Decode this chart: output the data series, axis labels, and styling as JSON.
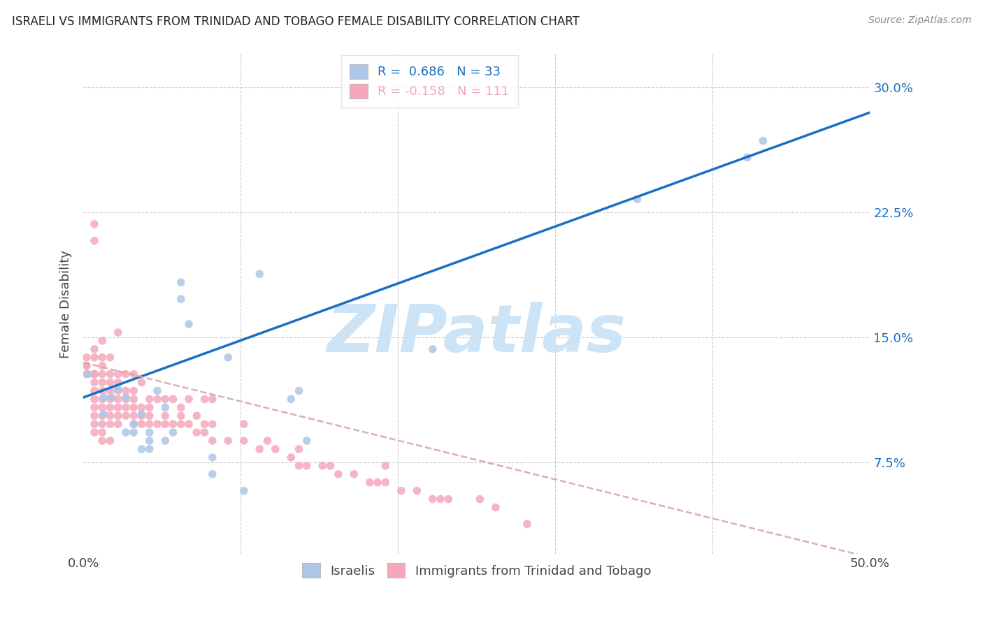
{
  "title": "ISRAELI VS IMMIGRANTS FROM TRINIDAD AND TOBAGO FEMALE DISABILITY CORRELATION CHART",
  "source": "Source: ZipAtlas.com",
  "ylabel": "Female Disability",
  "ytick_labels": [
    "7.5%",
    "15.0%",
    "22.5%",
    "30.0%"
  ],
  "xlim": [
    0.0,
    0.5
  ],
  "ylim": [
    0.02,
    0.32
  ],
  "yticks": [
    0.075,
    0.15,
    0.225,
    0.3
  ],
  "xticks": [
    0.0,
    0.1,
    0.2,
    0.3,
    0.4,
    0.5
  ],
  "xtick_labels_show": [
    "0.0%",
    "",
    "",
    "",
    "",
    "50.0%"
  ],
  "blue_R": 0.686,
  "blue_N": 33,
  "pink_R": -0.158,
  "pink_N": 111,
  "blue_color": "#aec6e8",
  "pink_color": "#f5a8bb",
  "blue_line_color": "#1a6fc4",
  "pink_line_color": "#d4a0b0",
  "pink_line_style": "dashed",
  "blue_scatter_x": [
    0.003,
    0.013,
    0.013,
    0.018,
    0.022,
    0.027,
    0.027,
    0.032,
    0.032,
    0.037,
    0.037,
    0.042,
    0.042,
    0.042,
    0.047,
    0.052,
    0.052,
    0.057,
    0.062,
    0.062,
    0.067,
    0.082,
    0.082,
    0.092,
    0.102,
    0.112,
    0.132,
    0.137,
    0.142,
    0.222,
    0.352,
    0.422,
    0.432
  ],
  "blue_scatter_y": [
    0.128,
    0.104,
    0.114,
    0.114,
    0.119,
    0.114,
    0.093,
    0.098,
    0.093,
    0.104,
    0.083,
    0.083,
    0.088,
    0.093,
    0.118,
    0.088,
    0.108,
    0.093,
    0.173,
    0.183,
    0.158,
    0.078,
    0.068,
    0.138,
    0.058,
    0.188,
    0.113,
    0.118,
    0.088,
    0.143,
    0.233,
    0.258,
    0.268
  ],
  "pink_scatter_x": [
    0.002,
    0.002,
    0.002,
    0.002,
    0.007,
    0.007,
    0.007,
    0.007,
    0.007,
    0.007,
    0.007,
    0.007,
    0.007,
    0.007,
    0.007,
    0.007,
    0.007,
    0.012,
    0.012,
    0.012,
    0.012,
    0.012,
    0.012,
    0.012,
    0.012,
    0.012,
    0.012,
    0.012,
    0.012,
    0.017,
    0.017,
    0.017,
    0.017,
    0.017,
    0.017,
    0.017,
    0.017,
    0.017,
    0.022,
    0.022,
    0.022,
    0.022,
    0.022,
    0.022,
    0.022,
    0.022,
    0.027,
    0.027,
    0.027,
    0.027,
    0.027,
    0.032,
    0.032,
    0.032,
    0.032,
    0.032,
    0.032,
    0.037,
    0.037,
    0.037,
    0.037,
    0.042,
    0.042,
    0.042,
    0.042,
    0.047,
    0.047,
    0.052,
    0.052,
    0.052,
    0.057,
    0.057,
    0.062,
    0.062,
    0.062,
    0.067,
    0.067,
    0.072,
    0.072,
    0.077,
    0.077,
    0.077,
    0.082,
    0.082,
    0.082,
    0.092,
    0.102,
    0.102,
    0.112,
    0.117,
    0.122,
    0.132,
    0.137,
    0.137,
    0.142,
    0.152,
    0.157,
    0.162,
    0.172,
    0.182,
    0.187,
    0.192,
    0.192,
    0.202,
    0.212,
    0.222,
    0.227,
    0.232,
    0.252,
    0.262,
    0.282
  ],
  "pink_scatter_y": [
    0.128,
    0.133,
    0.133,
    0.138,
    0.093,
    0.098,
    0.103,
    0.108,
    0.113,
    0.118,
    0.123,
    0.128,
    0.128,
    0.138,
    0.143,
    0.208,
    0.218,
    0.088,
    0.093,
    0.098,
    0.103,
    0.108,
    0.113,
    0.118,
    0.123,
    0.128,
    0.133,
    0.138,
    0.148,
    0.088,
    0.098,
    0.103,
    0.108,
    0.113,
    0.118,
    0.123,
    0.128,
    0.138,
    0.098,
    0.103,
    0.108,
    0.113,
    0.118,
    0.123,
    0.128,
    0.153,
    0.103,
    0.108,
    0.113,
    0.118,
    0.128,
    0.098,
    0.103,
    0.108,
    0.113,
    0.118,
    0.128,
    0.098,
    0.103,
    0.108,
    0.123,
    0.098,
    0.103,
    0.108,
    0.113,
    0.098,
    0.113,
    0.098,
    0.103,
    0.113,
    0.098,
    0.113,
    0.098,
    0.103,
    0.108,
    0.098,
    0.113,
    0.093,
    0.103,
    0.093,
    0.098,
    0.113,
    0.088,
    0.098,
    0.113,
    0.088,
    0.088,
    0.098,
    0.083,
    0.088,
    0.083,
    0.078,
    0.073,
    0.083,
    0.073,
    0.073,
    0.073,
    0.068,
    0.068,
    0.063,
    0.063,
    0.063,
    0.073,
    0.058,
    0.058,
    0.053,
    0.053,
    0.053,
    0.053,
    0.048,
    0.038
  ],
  "blue_line_x0": 0.0,
  "blue_line_y0": 0.114,
  "blue_line_x1": 0.5,
  "blue_line_y1": 0.285,
  "pink_line_x0": 0.0,
  "pink_line_y0": 0.135,
  "pink_line_x1": 0.5,
  "pink_line_y1": 0.018,
  "watermark": "ZIPatlas",
  "watermark_color": "#cce4f5",
  "legend_blue_label": "R =  0.686   N = 33",
  "legend_pink_label": "R = -0.158   N = 111",
  "bottom_legend_blue": "Israelis",
  "bottom_legend_pink": "Immigrants from Trinidad and Tobago"
}
